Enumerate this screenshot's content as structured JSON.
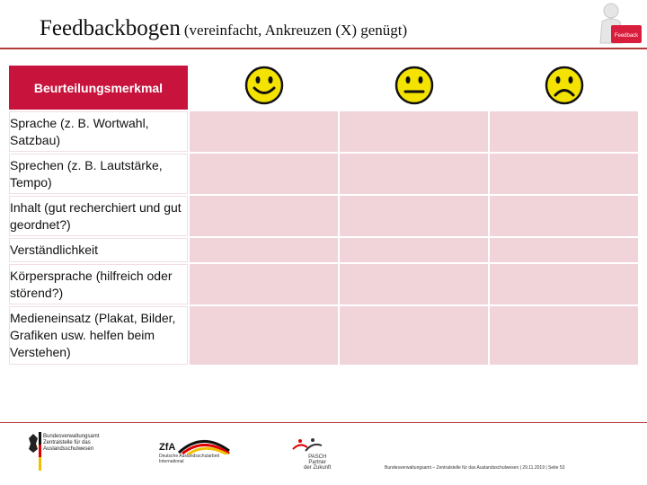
{
  "header": {
    "title_main": "Feedbackbogen",
    "title_sub": "(vereinfacht, Ankreuzen (X) genügt)",
    "mascot_sign": "Feedback"
  },
  "table": {
    "header_label": "Beurteilungsmerkmal",
    "faces": [
      "smiley-happy-icon",
      "smiley-neutral-icon",
      "smiley-sad-icon"
    ],
    "rows": [
      "Sprache (z. B. Wortwahl, Satzbau)",
      "Sprechen (z. B. Lautstärke, Tempo)",
      "Inhalt (gut recherchiert und gut geordnet?)",
      "Verständlichkeit",
      "Körpersprache (hilfreich oder störend?)",
      "Medieneinsatz (Plakat, Bilder, Grafiken usw. helfen beim Verstehen)"
    ]
  },
  "footer": {
    "logo1_lines": [
      "Bundesverwaltungsamt",
      "Zentralstelle für das",
      "Auslandsschulwesen"
    ],
    "logo2_name": "ZfA",
    "logo2_lines": [
      "Deutsche Auslandsschularbeit",
      "International"
    ],
    "logo3_lines": [
      "PASCH",
      "Partner",
      "der Zukunft"
    ],
    "credit": "Bundesverwaltungsamt – Zentralstelle für das Auslandsschulwesen | 29.11.2019 | Seite 53"
  },
  "colors": {
    "accent": "#c8143c",
    "cell": "#f0d4da",
    "face": "#f4e300"
  }
}
